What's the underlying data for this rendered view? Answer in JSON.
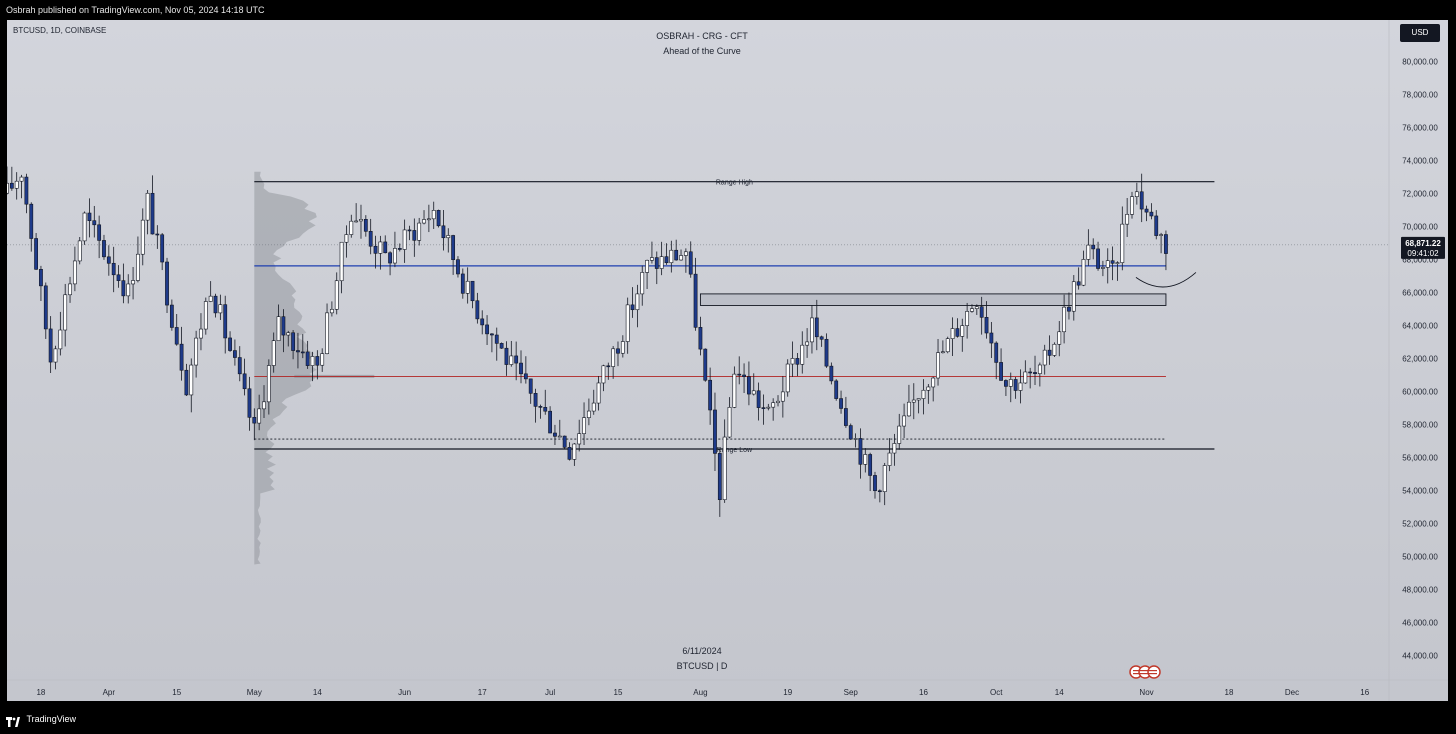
{
  "header": {
    "published": "Osbrah published on TradingView.com, Nov 05, 2024 14:18 UTC"
  },
  "chart": {
    "symbol_line": "BTCUSD, 1D, COINBASE",
    "title": "OSBRAH - CRG - CFT",
    "subtitle": "Ahead of the Curve",
    "currency": "USD",
    "bottom_date": "6/11/2024",
    "bottom_symbol": "BTCUSD | D"
  },
  "footer": {
    "brand": "TradingView"
  },
  "colors": {
    "up": "#ffffff",
    "down": "#1e3a8a",
    "wick": "#131722",
    "poc_line": "#1f3fb0",
    "value_line": "#b22222",
    "range_lines": "#131722",
    "profile": "#9a9ca3"
  },
  "chart_data": {
    "type": "candlestick",
    "y_axis": {
      "min": 42500,
      "max": 82500,
      "ticks": [
        "80,000.00",
        "78,000.00",
        "76,000.00",
        "74,000.00",
        "72,000.00",
        "70,000.00",
        "68,000.00",
        "66,000.00",
        "64,000.00",
        "62,000.00",
        "60,000.00",
        "58,000.00",
        "56,000.00",
        "54,000.00",
        "52,000.00",
        "50,000.00",
        "48,000.00",
        "46,000.00",
        "44,000.00"
      ],
      "tick_values": [
        80000,
        78000,
        76000,
        74000,
        72000,
        70000,
        68000,
        66000,
        64000,
        62000,
        60000,
        58000,
        56000,
        54000,
        52000,
        50000,
        48000,
        46000,
        44000
      ]
    },
    "x_axis": {
      "start": "2024-03-11",
      "end": "2024-12-21",
      "ticks": [
        {
          "label": "18",
          "date": "2024-03-18"
        },
        {
          "label": "Apr",
          "date": "2024-04-01"
        },
        {
          "label": "15",
          "date": "2024-04-15"
        },
        {
          "label": "May",
          "date": "2024-05-01"
        },
        {
          "label": "14",
          "date": "2024-05-14"
        },
        {
          "label": "Jun",
          "date": "2024-06-01"
        },
        {
          "label": "17",
          "date": "2024-06-17"
        },
        {
          "label": "Jul",
          "date": "2024-07-01"
        },
        {
          "label": "15",
          "date": "2024-07-15"
        },
        {
          "label": "Aug",
          "date": "2024-08-01"
        },
        {
          "label": "19",
          "date": "2024-08-19"
        },
        {
          "label": "Sep",
          "date": "2024-09-01"
        },
        {
          "label": "16",
          "date": "2024-09-16"
        },
        {
          "label": "Oct",
          "date": "2024-10-01"
        },
        {
          "label": "14",
          "date": "2024-10-14"
        },
        {
          "label": "Nov",
          "date": "2024-11-01"
        },
        {
          "label": "18",
          "date": "2024-11-18"
        },
        {
          "label": "Dec",
          "date": "2024-12-01"
        },
        {
          "label": "16",
          "date": "2024-12-16"
        }
      ]
    },
    "current_price": {
      "value": 68871.22,
      "label": "68,871.22",
      "countdown": "09:41:02"
    },
    "anchors": [
      {
        "date": "2024-03-11",
        "price": 72000
      },
      {
        "date": "2024-03-14",
        "price": 73400
      },
      {
        "date": "2024-03-20",
        "price": 62000
      },
      {
        "date": "2024-03-27",
        "price": 70500
      },
      {
        "date": "2024-04-05",
        "price": 66000
      },
      {
        "date": "2024-04-09",
        "price": 71500
      },
      {
        "date": "2024-04-17",
        "price": 60500
      },
      {
        "date": "2024-04-22",
        "price": 66500
      },
      {
        "date": "2024-05-01",
        "price": 57500
      },
      {
        "date": "2024-05-06",
        "price": 64000
      },
      {
        "date": "2024-05-14",
        "price": 61500
      },
      {
        "date": "2024-05-21",
        "price": 71000
      },
      {
        "date": "2024-05-28",
        "price": 68000
      },
      {
        "date": "2024-06-07",
        "price": 71000
      },
      {
        "date": "2024-06-14",
        "price": 66000
      },
      {
        "date": "2024-06-24",
        "price": 61000
      },
      {
        "date": "2024-07-05",
        "price": 56500
      },
      {
        "date": "2024-07-15",
        "price": 63000
      },
      {
        "date": "2024-07-21",
        "price": 67600
      },
      {
        "date": "2024-07-29",
        "price": 68500
      },
      {
        "date": "2024-08-05",
        "price": 54000
      },
      {
        "date": "2024-08-08",
        "price": 61500
      },
      {
        "date": "2024-08-15",
        "price": 58500
      },
      {
        "date": "2024-08-24",
        "price": 64000
      },
      {
        "date": "2024-09-06",
        "price": 54000
      },
      {
        "date": "2024-09-15",
        "price": 60000
      },
      {
        "date": "2024-09-27",
        "price": 65800
      },
      {
        "date": "2024-10-03",
        "price": 60500
      },
      {
        "date": "2024-10-10",
        "price": 61000
      },
      {
        "date": "2024-10-20",
        "price": 68500
      },
      {
        "date": "2024-10-25",
        "price": 67000
      },
      {
        "date": "2024-10-29",
        "price": 72500
      },
      {
        "date": "2024-11-05",
        "price": 68871
      }
    ],
    "levels": [
      {
        "name": "Range High",
        "price": 72700,
        "from": "2024-05-01",
        "to": "2024-11-15",
        "label": "Range High"
      },
      {
        "name": "Range Low",
        "price": 56500,
        "from": "2024-05-01",
        "to": "2024-11-15",
        "label": "Range Low"
      },
      {
        "name": "POC",
        "price": 67600,
        "from": "2024-05-01",
        "to": "2024-11-05",
        "label": ""
      },
      {
        "name": "Value",
        "price": 60900,
        "from": "2024-05-01",
        "to": "2024-11-05",
        "label": ""
      },
      {
        "name": "Dotted",
        "price": 57100,
        "from": "2024-05-01",
        "to": "2024-11-05",
        "label": ""
      }
    ],
    "zone": {
      "from": "2024-08-01",
      "to": "2024-11-05",
      "top": 65900,
      "bottom": 65200
    },
    "grid": false,
    "legend": "none"
  }
}
